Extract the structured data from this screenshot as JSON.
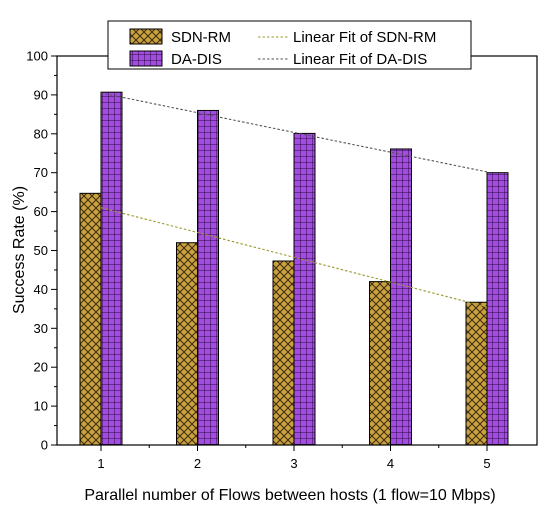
{
  "chart_data": {
    "type": "bar",
    "xlabel": "Parallel number of Flows between hosts (1 flow=10 Mbps)",
    "ylabel": "Success Rate (%)",
    "ylim": [
      0,
      100
    ],
    "yticks": [
      "0",
      "10",
      "20",
      "30",
      "40",
      "50",
      "60",
      "70",
      "80",
      "90",
      "100"
    ],
    "categories": [
      "1",
      "2",
      "3",
      "4",
      "5"
    ],
    "grid": false,
    "legend_position": "top",
    "series": [
      {
        "name": "SDN-RM",
        "values": [
          64.7,
          52.0,
          47.3,
          42.0,
          36.7
        ],
        "color": "#c9a13e",
        "pattern": "crosshatch",
        "fit": {
          "name": "Linear Fit of SDN-RM",
          "start": 61.0,
          "end": 35.5,
          "color": "#9a9a2e"
        }
      },
      {
        "name": "DA-DIS",
        "values": [
          90.7,
          86.0,
          80.1,
          76.1,
          70.0
        ],
        "color": "#a34de0",
        "pattern": "grid",
        "fit": {
          "name": "Linear Fit of DA-DIS",
          "start": 90.5,
          "end": 70.2,
          "color": "#555555"
        }
      }
    ]
  }
}
